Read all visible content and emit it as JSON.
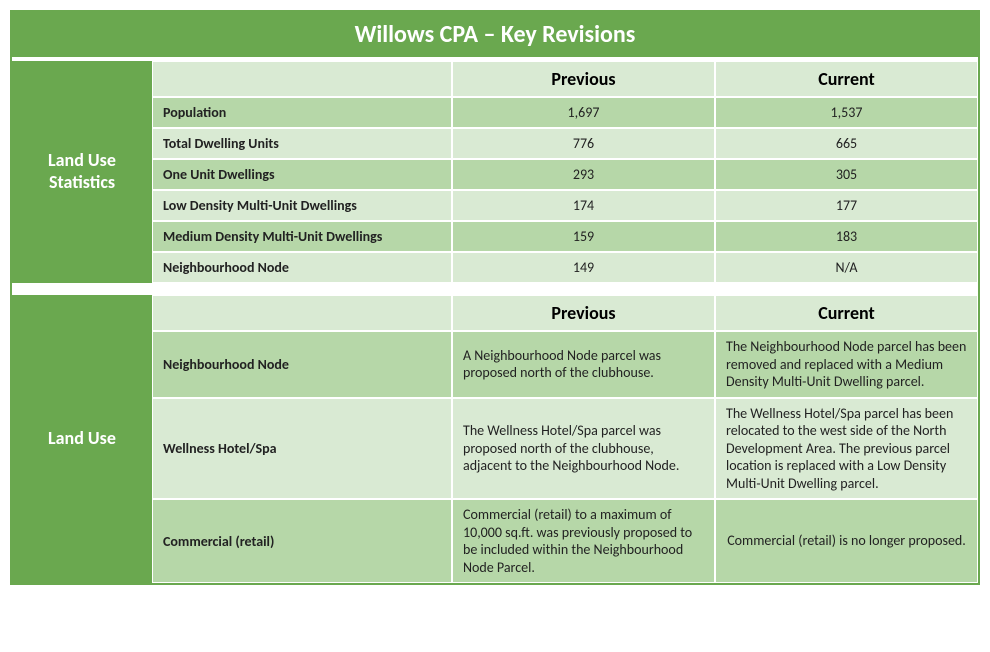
{
  "title": "Willows CPA – Key Revisions",
  "colors": {
    "accent": "#6aa84f",
    "band_light": "#d9ead3",
    "band_dark": "#b6d7a8",
    "white": "#ffffff",
    "text": "#222222"
  },
  "section1": {
    "sidebar_label": "Land Use Statistics",
    "headers": {
      "previous": "Previous",
      "current": "Current"
    },
    "rows": [
      {
        "label": "Population",
        "previous": "1,697",
        "current": "1,537"
      },
      {
        "label": "Total Dwelling Units",
        "previous": "776",
        "current": "665"
      },
      {
        "label": "One Unit Dwellings",
        "previous": "293",
        "current": "305"
      },
      {
        "label": "Low Density Multi-Unit Dwellings",
        "previous": "174",
        "current": "177"
      },
      {
        "label": "Medium Density Multi-Unit Dwellings",
        "previous": "159",
        "current": "183"
      },
      {
        "label": "Neighbourhood Node",
        "previous": "149",
        "current": "N/A"
      }
    ],
    "banding": [
      "a",
      "b",
      "a",
      "b",
      "a",
      "b"
    ]
  },
  "section2": {
    "sidebar_label": "Land Use",
    "headers": {
      "previous": "Previous",
      "current": "Current"
    },
    "rows": [
      {
        "label": "Neighbourhood Node",
        "previous": "A Neighbourhood Node parcel was proposed north of the clubhouse.",
        "current": "The Neighbourhood Node parcel has been removed and replaced with a Medium Density Multi-Unit Dwelling parcel."
      },
      {
        "label": "Wellness Hotel/Spa",
        "previous": "The Wellness Hotel/Spa parcel was proposed north of the clubhouse, adjacent to the Neighbourhood Node.",
        "current": "The Wellness Hotel/Spa parcel has been relocated to the west side of the North Development Area. The previous parcel location is replaced with a Low Density Multi-Unit Dwelling parcel."
      },
      {
        "label": "Commercial (retail)",
        "previous": "Commercial (retail) to a maximum of 10,000 sq.ft. was previously proposed to be included within the Neighbourhood Node Parcel.",
        "current": "Commercial (retail) is no longer proposed."
      }
    ],
    "banding": [
      "a",
      "b",
      "a"
    ]
  }
}
